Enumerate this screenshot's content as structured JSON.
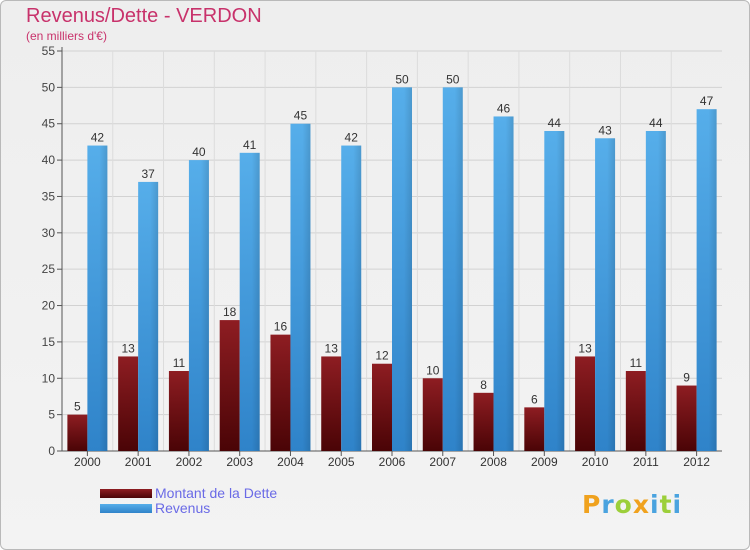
{
  "chart_data": {
    "type": "bar",
    "title": "Revenus/Dette - VERDON",
    "subtitle": "(en milliers d'€)",
    "xlabel": "",
    "ylabel": "",
    "ylim": [
      0,
      55
    ],
    "yticks": [
      0,
      5,
      10,
      15,
      20,
      25,
      30,
      35,
      40,
      45,
      50,
      55
    ],
    "grid": true,
    "legend_position": "bottom-left",
    "categories": [
      "2000",
      "2001",
      "2002",
      "2003",
      "2004",
      "2005",
      "2006",
      "2007",
      "2008",
      "2009",
      "2010",
      "2011",
      "2012"
    ],
    "series": [
      {
        "name": "Montant de la Dette",
        "color": "#7a1218",
        "values": [
          5,
          13,
          11,
          18,
          16,
          13,
          12,
          10,
          8,
          6,
          13,
          11,
          9
        ]
      },
      {
        "name": "Revenus",
        "color": "#4ba3e3",
        "values": [
          42,
          37,
          40,
          41,
          45,
          42,
          50,
          50,
          46,
          44,
          43,
          44,
          47
        ]
      }
    ]
  },
  "legend": {
    "debt_label": "Montant de la Dette",
    "revenue_label": "Revenus"
  },
  "brand": {
    "letters": [
      "P",
      "r",
      "o",
      "x",
      "i",
      "t",
      "i"
    ],
    "colors": [
      "#f0a21e",
      "#4aa3df",
      "#9ccf3a",
      "#f0a21e",
      "#4aa3df",
      "#9ccf3a",
      "#4aa3df"
    ]
  }
}
